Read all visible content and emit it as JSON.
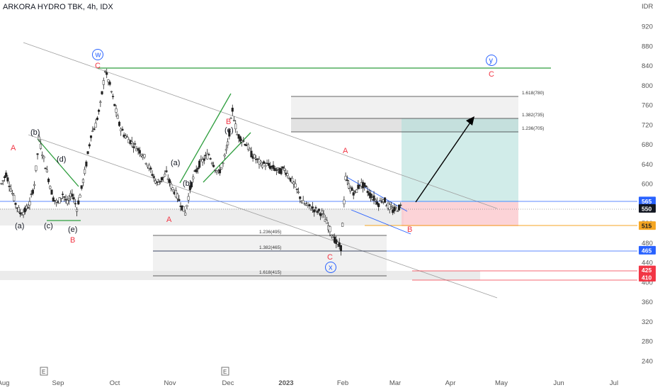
{
  "header": {
    "title": "ARKORA HYDRO TBK, 4h, IDX",
    "currency": "IDR"
  },
  "chart_data": {
    "type": "candlestick",
    "title": "ARKORA HYDRO TBK, 4h, IDX",
    "currency": "IDR",
    "ylim": [
      215,
      960
    ],
    "y_ticks": [
      240,
      280,
      320,
      360,
      400,
      440,
      480,
      520,
      560,
      600,
      640,
      680,
      720,
      760,
      800,
      840,
      880,
      920
    ],
    "x_ticks": [
      "Aug",
      "Sep",
      "Oct",
      "Nov",
      "Dec",
      "2023",
      "Feb",
      "Mar",
      "Apr",
      "May",
      "Jun",
      "Jul"
    ],
    "earnings_markers": [
      "E",
      "E"
    ],
    "price_levels": [
      {
        "label": "565",
        "value": 565,
        "color": "#2962ff"
      },
      {
        "label": "550",
        "value": 550,
        "color": "#131722"
      },
      {
        "label": "515",
        "value": 515,
        "color": "#f5a623"
      },
      {
        "label": "465",
        "value": 465,
        "color": "#2962ff"
      },
      {
        "label": "425",
        "value": 425,
        "color": "#f23645"
      },
      {
        "label": "410",
        "value": 410,
        "color": "#f23645"
      }
    ],
    "fib_upper": [
      {
        "label": "1.618(780)",
        "value": 780
      },
      {
        "label": "1.382(735)",
        "value": 735
      },
      {
        "label": "1.236(705)",
        "value": 705
      }
    ],
    "fib_lower": [
      {
        "label": "1.236(495)",
        "value": 495
      },
      {
        "label": "1.382(465)",
        "value": 465
      },
      {
        "label": "1.618(415)",
        "value": 415
      }
    ],
    "wave_labels": [
      {
        "text": "w",
        "circled": true,
        "color": "#2962ff"
      },
      {
        "text": "C",
        "color": "#f23645"
      },
      {
        "text": "A",
        "color": "#f23645"
      },
      {
        "text": "(b)",
        "color": "#131722"
      },
      {
        "text": "(d)",
        "color": "#131722"
      },
      {
        "text": "(a)",
        "color": "#131722"
      },
      {
        "text": "(c)",
        "color": "#131722"
      },
      {
        "text": "(e)",
        "color": "#131722"
      },
      {
        "text": "B",
        "color": "#f23645"
      },
      {
        "text": "A",
        "color": "#f23645"
      },
      {
        "text": "(a)",
        "color": "#131722"
      },
      {
        "text": "(b)",
        "color": "#131722"
      },
      {
        "text": "B",
        "color": "#f23645"
      },
      {
        "text": "(c)",
        "color": "#131722"
      },
      {
        "text": "A",
        "color": "#f23645"
      },
      {
        "text": "C",
        "color": "#f23645"
      },
      {
        "text": "x",
        "circled": true,
        "color": "#2962ff"
      },
      {
        "text": "B",
        "color": "#f23645"
      },
      {
        "text": "y",
        "circled": true,
        "color": "#2962ff"
      },
      {
        "text": "C",
        "color": "#f23645"
      }
    ],
    "series": [
      {
        "name": "price",
        "values": [
          600,
          620,
          590,
          560,
          540,
          545,
          560,
          600,
          690,
          650,
          610,
          570,
          560,
          580,
          560,
          580,
          550,
          590,
          640,
          700,
          720,
          760,
          830,
          800,
          760,
          720,
          700,
          690,
          680,
          670,
          660,
          640,
          620,
          600,
          610,
          620,
          595,
          580,
          560,
          540,
          590,
          620,
          640,
          650,
          660,
          640,
          620,
          640,
          680,
          750,
          700,
          690,
          680,
          660,
          650,
          640,
          640,
          635,
          630,
          625,
          630,
          615,
          600,
          580,
          560,
          555,
          550,
          545,
          540,
          520,
          500,
          480,
          470,
          610,
          590,
          580,
          600,
          595,
          580,
          570,
          560,
          570,
          555,
          545,
          550,
          555
        ]
      }
    ]
  }
}
